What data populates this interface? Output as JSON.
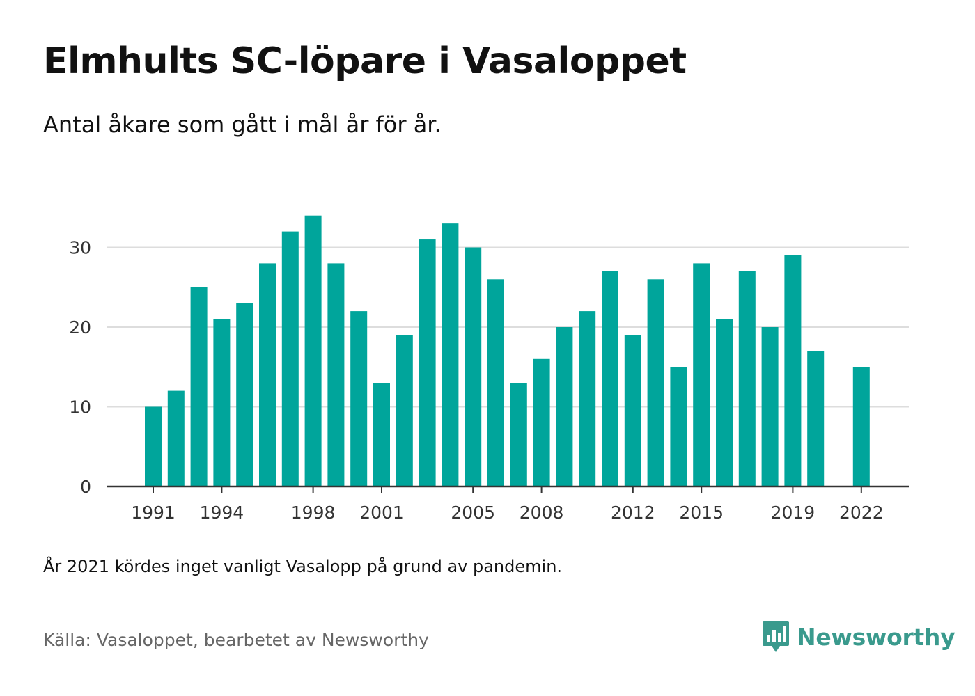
{
  "header": {
    "title": "Elmhults SC-löpare i Vasaloppet",
    "subtitle": "Antal åkare som gått i mål år för år."
  },
  "footer": {
    "note": "År 2021 kördes inget vanligt Vasalopp på grund av pandemin.",
    "source": "Källa: Vasaloppet, bearbetet av Newsworthy",
    "brand": "Newsworthy"
  },
  "colors": {
    "bar": "#00a59b",
    "grid": "#dddddd",
    "axis": "#333333",
    "tick_text": "#333333",
    "brand": "#3a9a8d"
  },
  "chart_data": {
    "type": "bar",
    "title": "Elmhults SC-löpare i Vasaloppet",
    "subtitle": "Antal åkare som gått i mål år för år.",
    "xlabel": "",
    "ylabel": "",
    "categories": [
      1991,
      1992,
      1993,
      1994,
      1995,
      1996,
      1997,
      1998,
      1999,
      2000,
      2001,
      2002,
      2003,
      2004,
      2005,
      2006,
      2007,
      2008,
      2009,
      2010,
      2011,
      2012,
      2013,
      2014,
      2015,
      2016,
      2017,
      2018,
      2019,
      2020,
      2021,
      2022
    ],
    "values": [
      10,
      12,
      25,
      21,
      23,
      28,
      32,
      34,
      28,
      22,
      13,
      19,
      31,
      33,
      30,
      26,
      13,
      16,
      20,
      22,
      27,
      19,
      26,
      15,
      28,
      21,
      27,
      20,
      29,
      17,
      null,
      15
    ],
    "x_tick_labels": [
      1991,
      1994,
      1998,
      2001,
      2005,
      2008,
      2012,
      2015,
      2019,
      2022
    ],
    "y_ticks": [
      0,
      10,
      20,
      30
    ],
    "ylim": [
      0,
      35
    ],
    "grid": true,
    "legend": "none"
  }
}
